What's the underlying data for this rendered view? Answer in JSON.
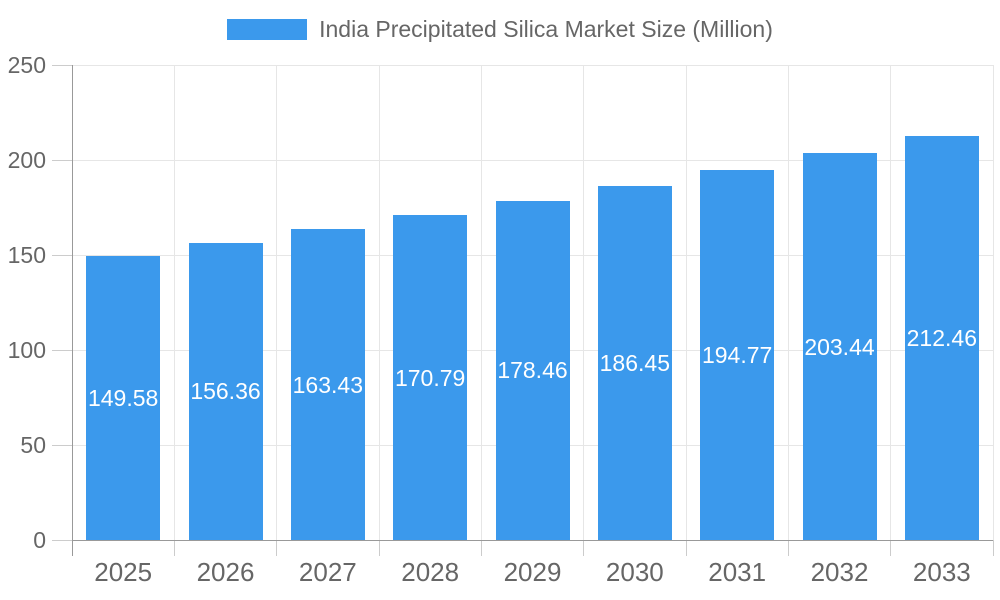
{
  "colors": {
    "bar": "#3B99EC",
    "bar_label": "#FFFFFF",
    "axis_text": "#666666",
    "grid_line": "#E6E6E6",
    "axis_line": "#999999",
    "tick_line": "#CCCCCC",
    "background": "#FFFFFF"
  },
  "legend": {
    "label": "India Precipitated Silica Market Size (Million)"
  },
  "chart_data": {
    "type": "bar",
    "title": "India Precipitated Silica Market Size (Million)",
    "categories": [
      "2025",
      "2026",
      "2027",
      "2028",
      "2029",
      "2030",
      "2031",
      "2032",
      "2033"
    ],
    "series": [
      {
        "name": "India Precipitated Silica Market Size (Million)",
        "values": [
          149.58,
          156.36,
          163.43,
          170.79,
          178.46,
          186.45,
          194.77,
          203.44,
          212.46
        ]
      }
    ],
    "data_labels": [
      "149.58",
      "156.36",
      "163.43",
      "170.79",
      "178.46",
      "186.45",
      "194.77",
      "203.44",
      "212.46"
    ],
    "xlabel": "",
    "ylabel": "",
    "ylim": [
      0,
      250
    ],
    "yticks": [
      0,
      50,
      100,
      150,
      200,
      250
    ],
    "grid": true,
    "legend_position": "top-center"
  }
}
